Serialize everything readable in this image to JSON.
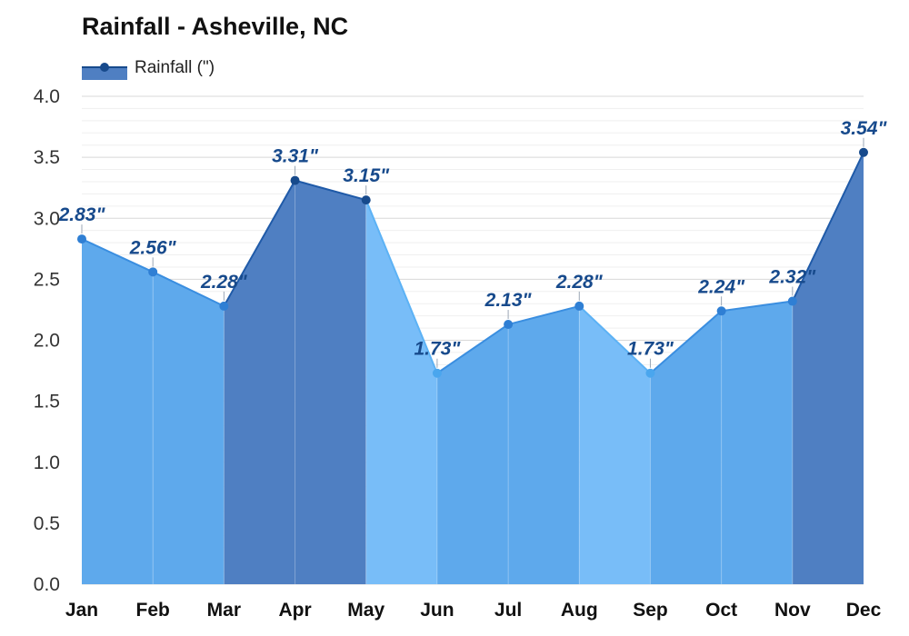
{
  "chart_data": {
    "type": "area",
    "title": "Rainfall - Asheville, NC",
    "categories": [
      "Jan",
      "Feb",
      "Mar",
      "Apr",
      "May",
      "Jun",
      "Jul",
      "Aug",
      "Sep",
      "Oct",
      "Nov",
      "Dec"
    ],
    "series": [
      {
        "name": "Rainfall (\")",
        "values": [
          2.83,
          2.56,
          2.28,
          3.31,
          3.15,
          1.73,
          2.13,
          2.28,
          1.73,
          2.24,
          2.32,
          3.54
        ]
      }
    ],
    "data_labels": [
      "2.83\"",
      "2.56\"",
      "2.28\"",
      "3.31\"",
      "3.15\"",
      "1.73\"",
      "2.13\"",
      "2.28\"",
      "1.73\"",
      "2.24\"",
      "2.32\"",
      "3.54\""
    ],
    "ylim": [
      0,
      4
    ],
    "yticks": [
      "0.0",
      "0.5",
      "1.0",
      "1.5",
      "2.0",
      "2.5",
      "3.0",
      "3.5",
      "4.0"
    ],
    "grid": true,
    "legend_position": "top-left",
    "segment_colors": [
      "#5ea9ec",
      "#5ea9ec",
      "#4f7fc2",
      "#4f7fc2",
      "#78bdf8",
      "#5ea9ec",
      "#5ea9ec",
      "#78bdf8",
      "#5ea9ec",
      "#5ea9ec",
      "#4f7fc2"
    ],
    "line_color": "#174a8c",
    "point_colors": [
      "#2f7fd4",
      "#2f7fd4",
      "#2f7fd4",
      "#174a8c",
      "#174a8c",
      "#4aa6ee",
      "#2f7fd4",
      "#2f7fd4",
      "#4aa6ee",
      "#2f7fd4",
      "#2f7fd4",
      "#174a8c"
    ],
    "legend_color": "#4f7fc2"
  }
}
